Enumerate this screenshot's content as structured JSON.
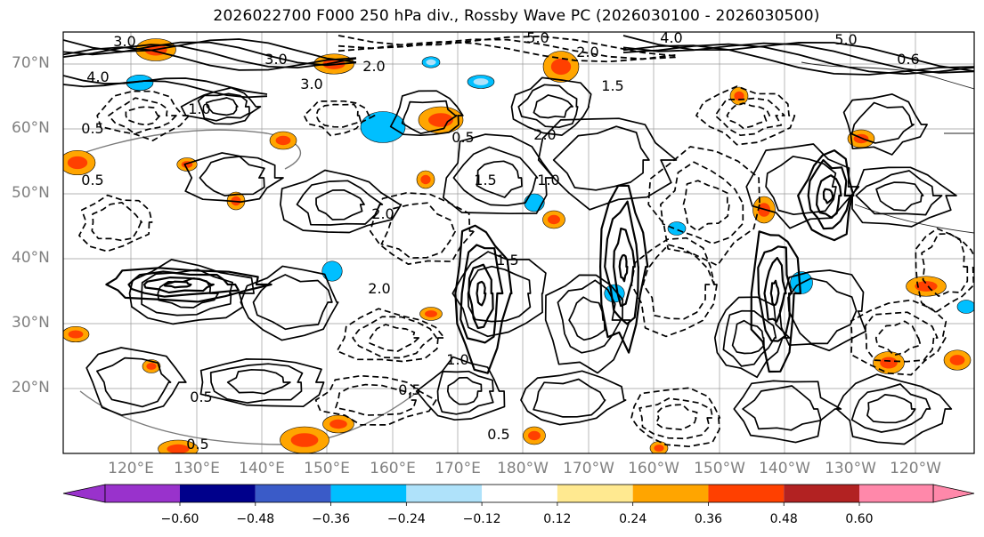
{
  "title": "2026022700 F000 250 hPa div., Rossby Wave PC (2026030100 - 2026030500)",
  "lat_labels": [
    "70°N",
    "60°N",
    "50°N",
    "40°N",
    "30°N",
    "20°N"
  ],
  "lon_labels": [
    "120°E",
    "130°E",
    "140°E",
    "150°E",
    "160°E",
    "170°E",
    "180°W",
    "170°W",
    "160°W",
    "150°W",
    "140°W",
    "130°W",
    "120°W"
  ],
  "colorbar": {
    "ticks": [
      "−0.60",
      "−0.48",
      "−0.36",
      "−0.24",
      "−0.12",
      "0.12",
      "0.24",
      "0.36",
      "0.48",
      "0.60"
    ],
    "colors": [
      "#9932cc",
      "#00008b",
      "#3a5bc8",
      "#00bfff",
      "#afe2fa",
      "#ffffff",
      "#ffe990",
      "#ffa500",
      "#ff4000",
      "#b22222",
      "#ff88aa"
    ]
  },
  "contour_labels": [
    "5.0",
    "4.0",
    "2.0",
    "3.0",
    "3.0",
    "2.0",
    "1.5",
    "1.0",
    "0.5",
    "0.5",
    "0.5",
    "0.5",
    "1.0",
    "2.0",
    "1.5",
    "1.5",
    "2.0",
    "0.5",
    "1.0",
    "0.5",
    "0.5",
    "4.0",
    "5.0",
    "0.6",
    "3.0",
    "2.0"
  ]
}
